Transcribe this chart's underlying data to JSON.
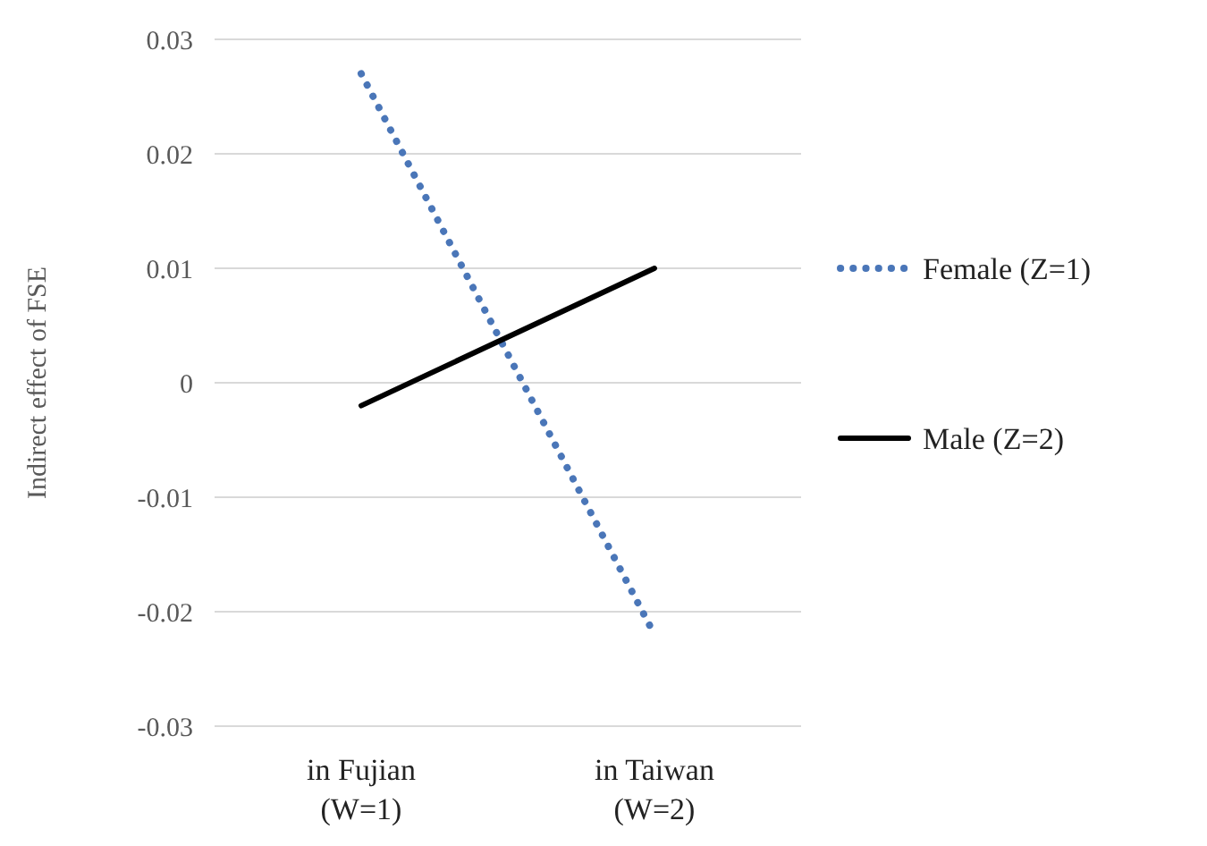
{
  "chart_data": {
    "type": "line",
    "ylabel": "Indirect effect of FSE",
    "categories": [
      "in Fujian\n(W=1)",
      "in Taiwan\n(W=2)"
    ],
    "series": [
      {
        "name": "Female (Z=1)",
        "color": "#4a76b8",
        "values": [
          0.027,
          -0.022
        ],
        "line_style": "dotted"
      },
      {
        "name": "Male (Z=2)",
        "color": "#000000",
        "values": [
          -0.002,
          0.01
        ],
        "line_style": "solid"
      }
    ],
    "ylim": [
      -0.03,
      0.03
    ],
    "yticks": [
      -0.03,
      -0.02,
      -0.01,
      0,
      0.01,
      0.02,
      0.03
    ],
    "grid": "y",
    "legend": "right",
    "marker": "none"
  }
}
